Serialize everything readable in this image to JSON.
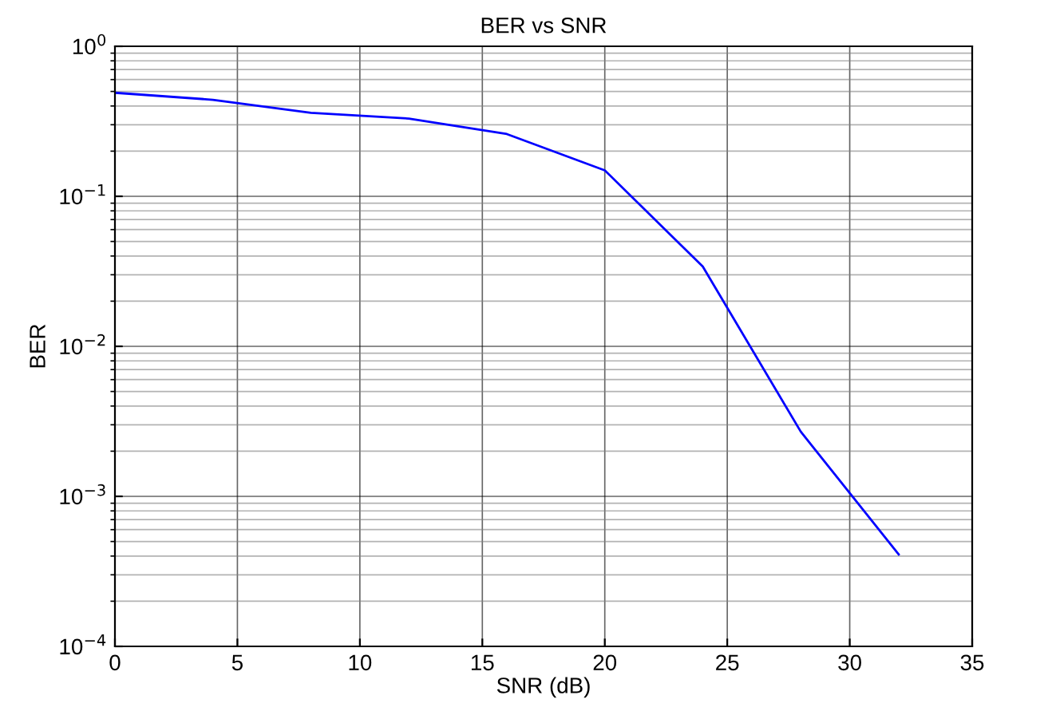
{
  "chart_data": {
    "type": "line",
    "title": "BER vs SNR",
    "xlabel": "SNR (dB)",
    "ylabel": "BER",
    "x": [
      0,
      4,
      8,
      12,
      16,
      20,
      24,
      28,
      32
    ],
    "series": [
      {
        "color": "#0000ff",
        "values": [
          0.49,
          0.44,
          0.36,
          0.33,
          0.26,
          0.149,
          0.034,
          0.0027,
          0.00041
        ]
      }
    ],
    "log": "y",
    "xlim": [
      0,
      35
    ],
    "xticks": [
      0,
      5,
      10,
      15,
      20,
      25,
      30,
      35
    ],
    "ylim": [
      0.0001,
      1
    ],
    "yticks": [
      {
        "value": 0.0001,
        "label": "10$^{−4}$"
      },
      {
        "value": 0.001,
        "label": "10$^{−3}$"
      },
      {
        "value": 0.01,
        "label": "10$^{−2}$"
      },
      {
        "value": 0.1,
        "label": "10$^{−1}$"
      },
      {
        "value": 1,
        "label": "10$^{0}$"
      }
    ],
    "grid": true,
    "marker": "none",
    "line_style": "solid"
  }
}
